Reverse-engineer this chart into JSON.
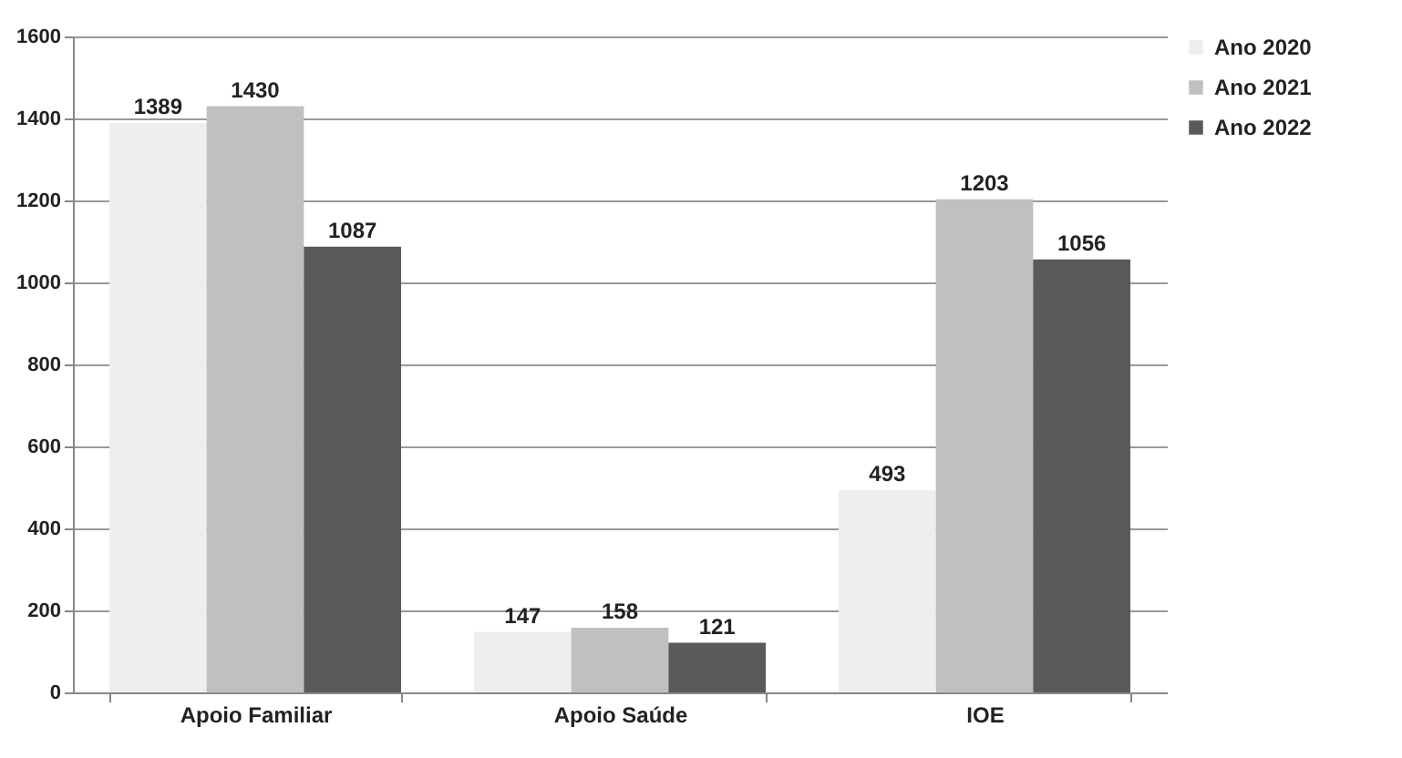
{
  "chart_data": {
    "type": "bar",
    "categories": [
      "Apoio Familiar",
      "Apoio Saúde",
      "IOE"
    ],
    "series": [
      {
        "name": "Ano 2020",
        "color": "#eeeeee",
        "values": [
          1389,
          147,
          493
        ]
      },
      {
        "name": "Ano 2021",
        "color": "#c0c0c0",
        "values": [
          1430,
          158,
          1203
        ]
      },
      {
        "name": "Ano 2022",
        "color": "#5a5a5a",
        "values": [
          1087,
          121,
          1056
        ]
      }
    ],
    "ylim": [
      0,
      1600
    ],
    "yticks": [
      0,
      200,
      400,
      600,
      800,
      1000,
      1200,
      1400,
      1600
    ],
    "grid": "y",
    "legend": "right",
    "data_labels": true
  }
}
